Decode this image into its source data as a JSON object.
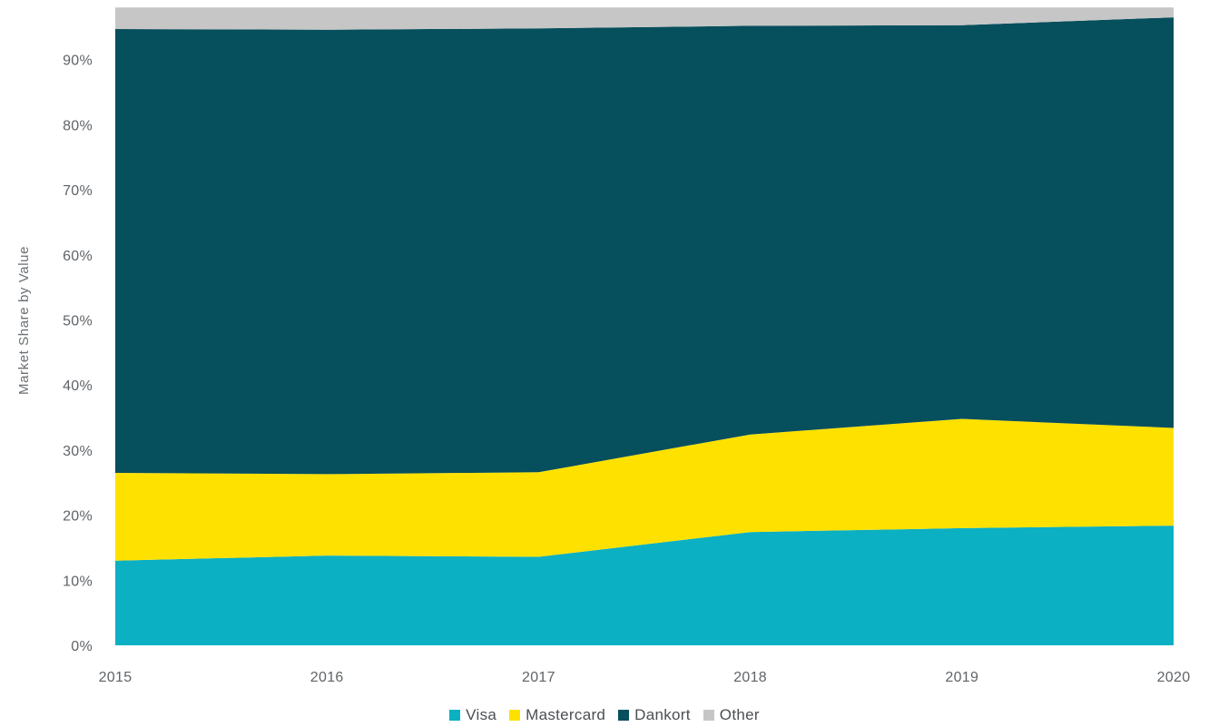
{
  "chart_data": {
    "type": "area",
    "stacked": true,
    "x": [
      "2015",
      "2016",
      "2017",
      "2018",
      "2019",
      "2020"
    ],
    "ylabel": "Market Share by Value",
    "xlabel": "",
    "ylim": [
      0,
      100
    ],
    "ymax_shown": 98,
    "yticks": [
      "0%",
      "10%",
      "20%",
      "30%",
      "40%",
      "50%",
      "60%",
      "70%",
      "80%",
      "90%"
    ],
    "ytick_values": [
      0,
      10,
      20,
      30,
      40,
      50,
      60,
      70,
      80,
      90
    ],
    "series": [
      {
        "name": "Visa",
        "color": "#0bb0c2",
        "values": [
          13.0,
          13.8,
          13.6,
          17.4,
          18.0,
          18.4
        ]
      },
      {
        "name": "Mastercard",
        "color": "#ffe100",
        "values": [
          13.5,
          12.5,
          13.0,
          15.0,
          16.8,
          15.0
        ]
      },
      {
        "name": "Dankort",
        "color": "#064f5c",
        "values": [
          68.2,
          68.3,
          68.2,
          62.8,
          60.5,
          63.1
        ]
      },
      {
        "name": "Other",
        "color": "#c6c6c6",
        "values": [
          3.3,
          3.4,
          3.2,
          2.8,
          2.7,
          1.5
        ]
      }
    ],
    "grid": false,
    "legend_position": "bottom-center"
  }
}
